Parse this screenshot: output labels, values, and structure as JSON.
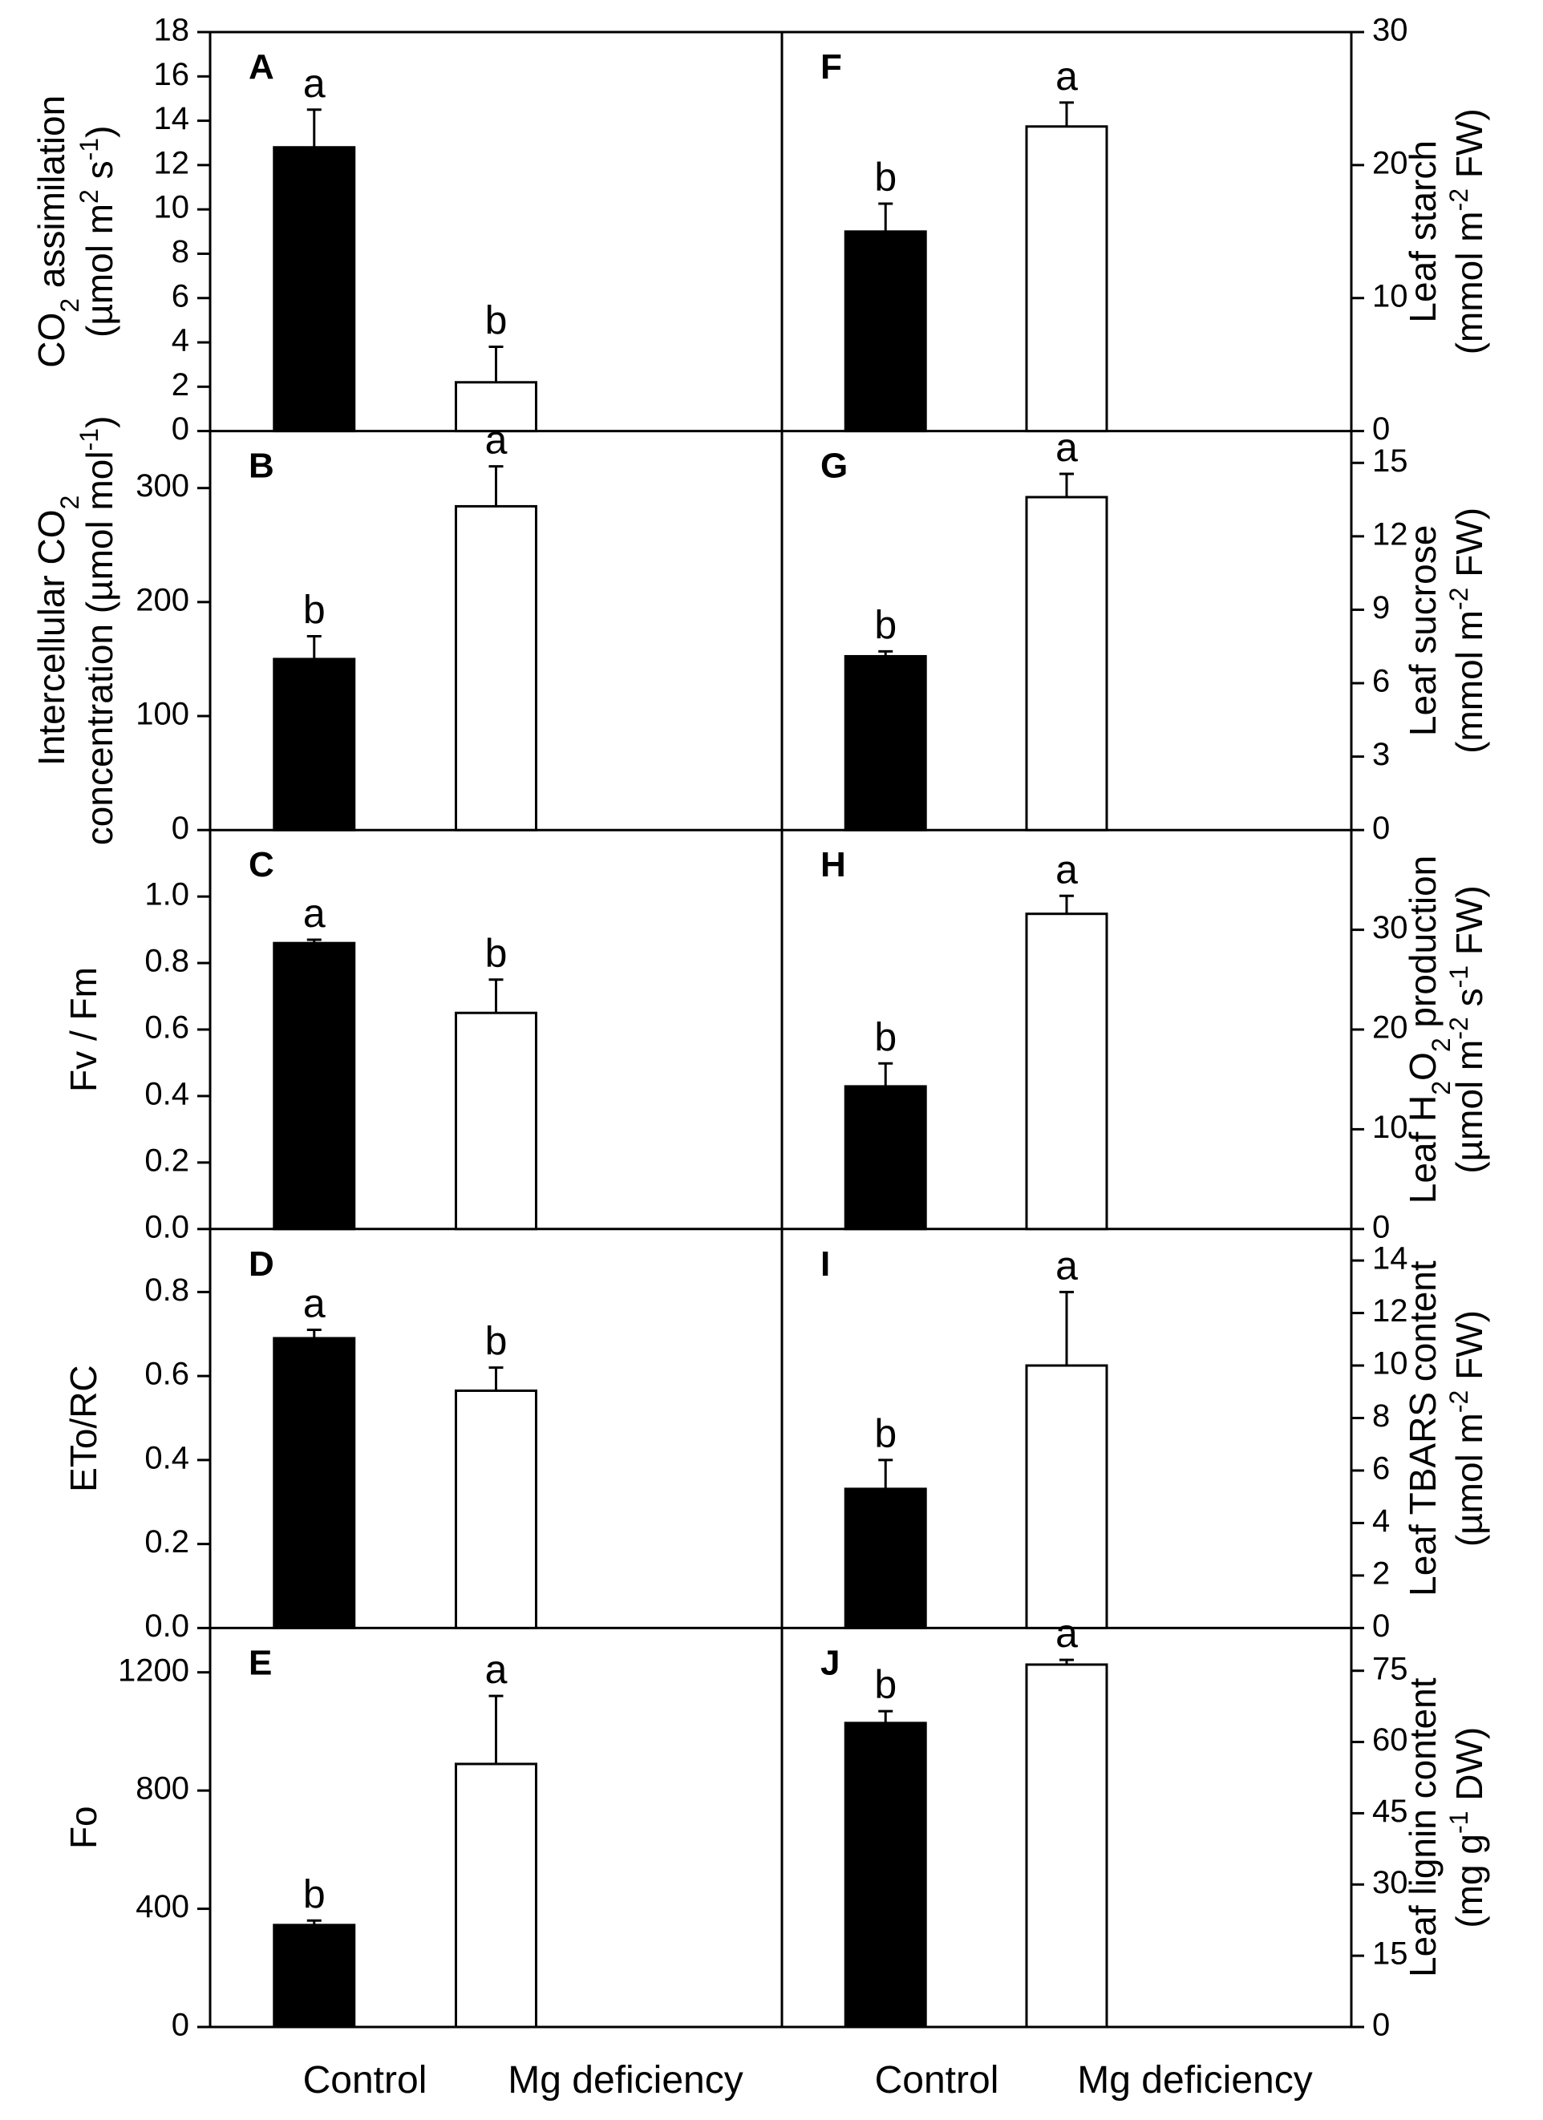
{
  "figure": {
    "categories": [
      "Control",
      "Mg deficiency"
    ],
    "colors": {
      "control": "#000000",
      "deficiency": "#ffffff",
      "axis": "#000000"
    }
  },
  "chart_data": [
    {
      "type": "bar",
      "panel": "A",
      "side": "left",
      "ylabel_lines": [
        [
          "CO",
          {
            "sub": "2"
          },
          " assimilation"
        ],
        [
          "(µmol m",
          {
            "sup": "2"
          },
          " s",
          {
            "sup": "-1"
          },
          ")"
        ]
      ],
      "ylabel_text": "CO2 assimilation (µmol m2 s-1)",
      "ylim": [
        0,
        18
      ],
      "ticks": [
        0,
        2,
        4,
        6,
        8,
        10,
        12,
        14,
        16,
        18
      ],
      "categories": [
        "Control",
        "Mg deficiency"
      ],
      "values": [
        12.8,
        2.2
      ],
      "errors": [
        1.7,
        1.6
      ],
      "letters": [
        "a",
        "b"
      ]
    },
    {
      "type": "bar",
      "panel": "B",
      "side": "left",
      "ylabel_lines": [
        [
          "Intercellular CO",
          {
            "sub": "2"
          }
        ],
        [
          "concentration (µmol mol",
          {
            "sup": "-1"
          },
          ")"
        ]
      ],
      "ylabel_text": "Intercellular CO2 concentration (µmol mol-1)",
      "ylim": [
        0,
        350
      ],
      "ticks": [
        0,
        100,
        200,
        300
      ],
      "categories": [
        "Control",
        "Mg deficiency"
      ],
      "values": [
        150,
        284
      ],
      "errors": [
        20,
        35
      ],
      "letters": [
        "b",
        "a"
      ]
    },
    {
      "type": "bar",
      "panel": "C",
      "side": "left",
      "ylabel_lines": [
        [
          "Fv / Fm"
        ]
      ],
      "ylabel_text": "Fv / Fm",
      "ylim": [
        0,
        1.2
      ],
      "ticks": [
        0.0,
        0.2,
        0.4,
        0.6,
        0.8,
        1.0
      ],
      "decimals": 1,
      "categories": [
        "Control",
        "Mg deficiency"
      ],
      "values": [
        0.86,
        0.65
      ],
      "errors": [
        0.01,
        0.1
      ],
      "letters": [
        "a",
        "b"
      ]
    },
    {
      "type": "bar",
      "panel": "D",
      "side": "left",
      "ylabel_lines": [
        [
          "ETo/RC"
        ]
      ],
      "ylabel_text": "ETo/RC",
      "ylim": [
        0,
        0.95
      ],
      "ticks": [
        0.0,
        0.2,
        0.4,
        0.6,
        0.8
      ],
      "decimals": 1,
      "categories": [
        "Control",
        "Mg deficiency"
      ],
      "values": [
        0.69,
        0.565
      ],
      "errors": [
        0.02,
        0.055
      ],
      "letters": [
        "a",
        "b"
      ]
    },
    {
      "type": "bar",
      "panel": "E",
      "side": "left",
      "ylabel_lines": [
        [
          "Fo"
        ]
      ],
      "ylabel_text": "Fo",
      "ylim": [
        0,
        1350
      ],
      "ticks": [
        0,
        400,
        800,
        1200
      ],
      "categories": [
        "Control",
        "Mg deficiency"
      ],
      "values": [
        345,
        890
      ],
      "errors": [
        15,
        230
      ],
      "letters": [
        "b",
        "a"
      ]
    },
    {
      "type": "bar",
      "panel": "F",
      "side": "right",
      "ylabel_lines": [
        [
          "Leaf starch"
        ],
        [
          "(mmol m",
          {
            "sup": "-2"
          },
          " FW)"
        ]
      ],
      "ylabel_text": "Leaf starch (mmol m-2 FW)",
      "ylim": [
        0,
        30
      ],
      "ticks": [
        0,
        10,
        20,
        30
      ],
      "categories": [
        "Control",
        "Mg deficiency"
      ],
      "values": [
        15.0,
        22.9
      ],
      "errors": [
        2.1,
        1.8
      ],
      "letters": [
        "b",
        "a"
      ]
    },
    {
      "type": "bar",
      "panel": "G",
      "side": "right",
      "ylabel_lines": [
        [
          "Leaf sucrose"
        ],
        [
          "(mmol m",
          {
            "sup": "-2"
          },
          " FW)"
        ]
      ],
      "ylabel_text": "Leaf sucrose (mmol m-2 FW)",
      "ylim": [
        0,
        16.3
      ],
      "ticks": [
        0,
        3,
        6,
        9,
        12,
        15
      ],
      "categories": [
        "Control",
        "Mg deficiency"
      ],
      "values": [
        7.1,
        13.6
      ],
      "errors": [
        0.2,
        0.95
      ],
      "letters": [
        "b",
        "a"
      ]
    },
    {
      "type": "bar",
      "panel": "H",
      "side": "right",
      "ylabel_lines": [
        [
          "Leaf H",
          {
            "sub": "2"
          },
          "O",
          {
            "sub": "2"
          },
          " production"
        ],
        [
          "(µmol m",
          {
            "sup": "-2"
          },
          " s",
          {
            "sup": "-1"
          },
          " FW)"
        ]
      ],
      "ylabel_text": "Leaf H2O2 production (µmol m-2 s-1 FW)",
      "ylim": [
        0,
        40
      ],
      "ticks": [
        0,
        10,
        20,
        30
      ],
      "categories": [
        "Control",
        "Mg deficiency"
      ],
      "values": [
        14.3,
        31.6
      ],
      "errors": [
        2.3,
        1.8
      ],
      "letters": [
        "b",
        "a"
      ]
    },
    {
      "type": "bar",
      "panel": "I",
      "side": "right",
      "ylabel_lines": [
        [
          "Leaf TBARS content"
        ],
        [
          "(µmol m",
          {
            "sup": "-2"
          },
          " FW)"
        ]
      ],
      "ylabel_text": "Leaf TBARS content (µmol m-2 FW)",
      "ylim": [
        0,
        15.2
      ],
      "ticks": [
        0,
        2,
        4,
        6,
        8,
        10,
        12,
        14
      ],
      "categories": [
        "Control",
        "Mg deficiency"
      ],
      "values": [
        5.3,
        10.0
      ],
      "errors": [
        1.1,
        2.8
      ],
      "letters": [
        "b",
        "a"
      ]
    },
    {
      "type": "bar",
      "panel": "J",
      "side": "right",
      "ylabel_lines": [
        [
          "Leaf lignin content"
        ],
        [
          "(mg g",
          {
            "sup": "-1"
          },
          " DW)"
        ]
      ],
      "ylabel_text": "Leaf lignin content (mg g-1 DW)",
      "ylim": [
        0,
        84
      ],
      "ticks": [
        0,
        15,
        30,
        45,
        60,
        75
      ],
      "categories": [
        "Control",
        "Mg deficiency"
      ],
      "values": [
        64,
        76.3
      ],
      "errors": [
        2.5,
        1.0
      ],
      "letters": [
        "b",
        "a"
      ]
    }
  ]
}
